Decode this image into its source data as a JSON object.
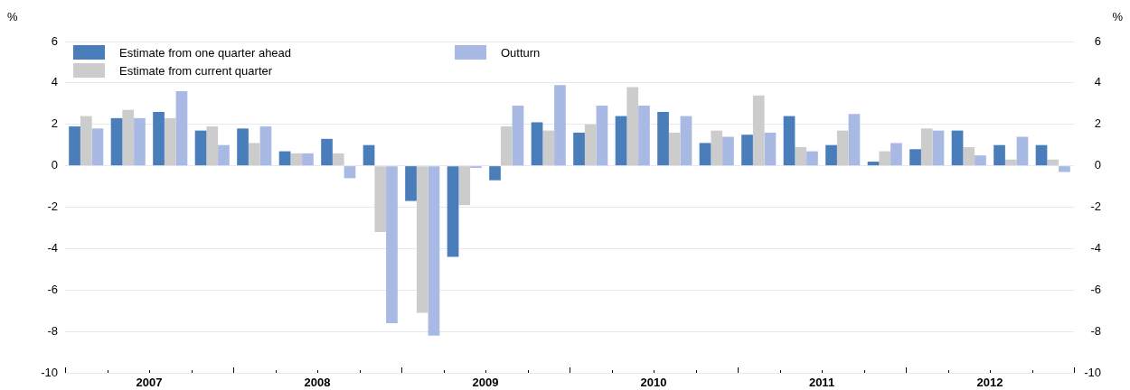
{
  "chart_data": {
    "type": "bar",
    "ylabel": "%",
    "y2label": "%",
    "x": [
      2007.125,
      2007.375,
      2007.625,
      2007.875,
      2008.125,
      2008.375,
      2008.625,
      2008.875,
      2009.125,
      2009.375,
      2009.625,
      2009.875,
      2010.125,
      2010.375,
      2010.625,
      2010.875,
      2011.125,
      2011.375,
      2011.625,
      2011.875,
      2012.125,
      2012.375,
      2012.625,
      2012.875
    ],
    "series": [
      {
        "name": "Estimate from one quarter ahead",
        "color": "#4a7ebb",
        "values": [
          1.9,
          2.3,
          2.6,
          1.7,
          1.8,
          0.7,
          1.3,
          1.0,
          -1.7,
          -4.4,
          -0.7,
          2.1,
          1.6,
          2.4,
          2.6,
          1.1,
          1.5,
          2.4,
          1.0,
          0.2,
          0.8,
          1.7,
          1.0,
          1.0
        ]
      },
      {
        "name": "Estimate from current quarter",
        "color": "#cccccc",
        "values": [
          2.4,
          2.7,
          2.3,
          1.9,
          1.1,
          0.6,
          0.6,
          -3.2,
          -7.1,
          -1.9,
          1.9,
          1.7,
          2.0,
          3.8,
          1.6,
          1.7,
          3.4,
          0.9,
          1.7,
          0.7,
          1.8,
          0.9,
          0.3,
          0.3
        ]
      },
      {
        "name": "Outturn",
        "color": "#a8b9e3",
        "values": [
          1.8,
          2.3,
          3.6,
          1.0,
          1.9,
          0.6,
          -0.6,
          -7.6,
          -8.2,
          -0.1,
          2.9,
          3.9,
          2.9,
          2.9,
          2.4,
          1.4,
          1.6,
          0.7,
          2.5,
          1.1,
          1.7,
          0.5,
          1.4,
          -0.3
        ]
      }
    ],
    "xlim": [
      2007,
      2013
    ],
    "xticks": [
      {
        "value": 2007,
        "label": null
      },
      {
        "value": 2007.25,
        "label": null
      },
      {
        "value": 2007.5,
        "label": "2007"
      },
      {
        "value": 2007.75,
        "label": null
      },
      {
        "value": 2008,
        "label": null
      },
      {
        "value": 2008.25,
        "label": null
      },
      {
        "value": 2008.5,
        "label": "2008"
      },
      {
        "value": 2008.75,
        "label": null
      },
      {
        "value": 2009,
        "label": null
      },
      {
        "value": 2009.25,
        "label": null
      },
      {
        "value": 2009.5,
        "label": "2009"
      },
      {
        "value": 2009.75,
        "label": null
      },
      {
        "value": 2010,
        "label": null
      },
      {
        "value": 2010.25,
        "label": null
      },
      {
        "value": 2010.5,
        "label": "2010"
      },
      {
        "value": 2010.75,
        "label": null
      },
      {
        "value": 2011,
        "label": null
      },
      {
        "value": 2011.25,
        "label": null
      },
      {
        "value": 2011.5,
        "label": "2011"
      },
      {
        "value": 2011.75,
        "label": null
      },
      {
        "value": 2012,
        "label": null
      },
      {
        "value": 2012.25,
        "label": null
      },
      {
        "value": 2012.5,
        "label": "2012"
      },
      {
        "value": 2012.75,
        "label": null
      },
      {
        "value": 2013,
        "label": null
      }
    ],
    "ylim": [
      -10,
      6
    ],
    "yticks": [
      -10,
      -8,
      -6,
      -4,
      -2,
      0,
      2,
      4,
      6
    ],
    "y2lim": [
      -10,
      6
    ],
    "y2ticks": [
      -10,
      -8,
      -6,
      -4,
      -2,
      0,
      2,
      4,
      6
    ],
    "grid": "y",
    "legend": "top left"
  }
}
